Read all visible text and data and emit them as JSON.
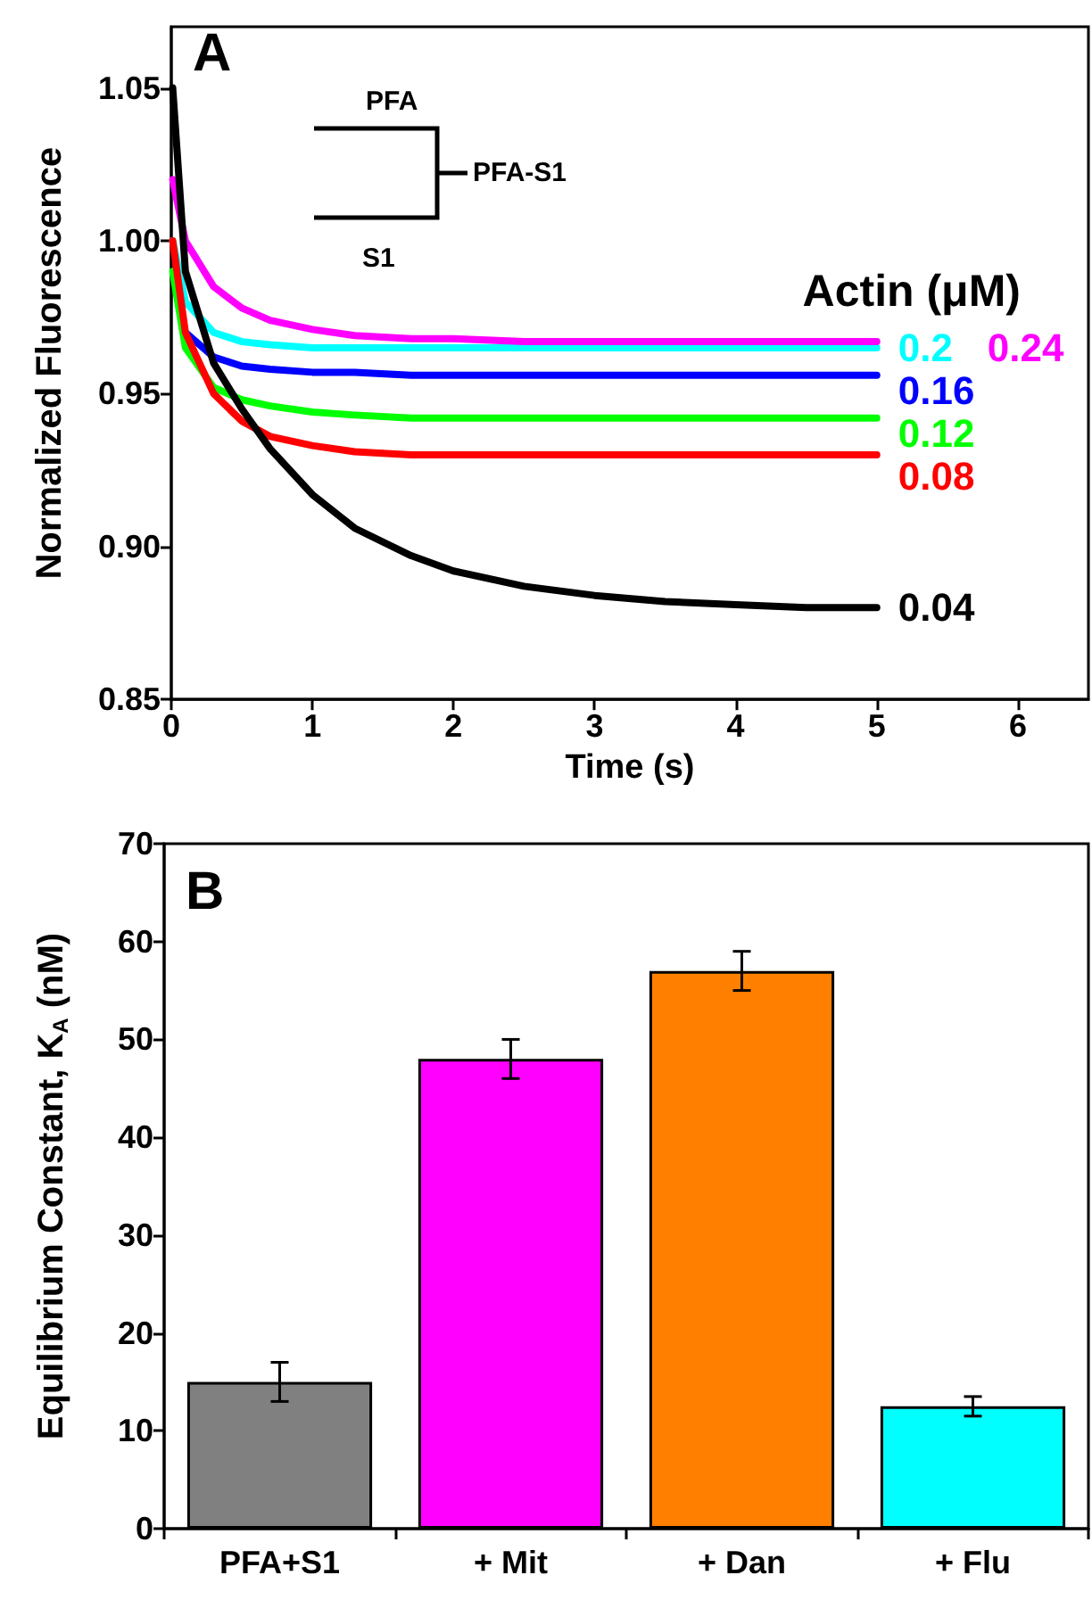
{
  "chart_data": [
    {
      "type": "line",
      "xlabel": "Time (s)",
      "ylabel": "Normalized Fluorescence",
      "legend_title": "Actin (μM)",
      "xlim": [
        0,
        6.5
      ],
      "xticks": [
        0,
        1,
        2,
        3,
        4,
        5,
        6
      ],
      "ylim": [
        0.85,
        1.07
      ],
      "yticks": [
        0.85,
        {
          "value": 0.9,
          "label": "0.90"
        },
        0.95,
        {
          "value": 1.0,
          "label": "1.00"
        },
        1.05
      ],
      "x": [
        0.01,
        0.1,
        0.3,
        0.5,
        0.7,
        1.0,
        1.3,
        1.7,
        2.0,
        2.5,
        3.0,
        3.5,
        4.0,
        4.5,
        5.0
      ],
      "series": [
        {
          "name": "0.2",
          "color": "#00ffff",
          "values": [
            1.0,
            0.98,
            0.97,
            0.967,
            0.966,
            0.965,
            0.965,
            0.965,
            0.965,
            0.965,
            0.965,
            0.965,
            0.965,
            0.965,
            0.965
          ]
        },
        {
          "name": "0.24",
          "color": "#ff00ff",
          "values": [
            1.02,
            1.0,
            0.985,
            0.978,
            0.974,
            0.971,
            0.969,
            0.968,
            0.968,
            0.967,
            0.967,
            0.967,
            0.967,
            0.967,
            0.967
          ]
        },
        {
          "name": "0.16",
          "color": "#0000ff",
          "values": [
            null,
            0.97,
            0.962,
            0.959,
            0.958,
            0.957,
            0.957,
            0.956,
            0.956,
            0.956,
            0.956,
            0.956,
            0.956,
            0.956,
            0.956
          ]
        },
        {
          "name": "0.12",
          "color": "#00ff00",
          "values": [
            0.99,
            0.965,
            0.952,
            0.948,
            0.946,
            0.944,
            0.943,
            0.942,
            0.942,
            0.942,
            0.942,
            0.942,
            0.942,
            0.942,
            0.942
          ]
        },
        {
          "name": "0.08",
          "color": "#ff0000",
          "values": [
            1.0,
            0.97,
            0.95,
            0.941,
            0.936,
            0.933,
            0.931,
            0.93,
            0.93,
            0.93,
            0.93,
            0.93,
            0.93,
            0.93,
            0.93
          ]
        },
        {
          "name": "0.04",
          "color": "#000000",
          "values": [
            1.05,
            0.99,
            0.96,
            0.945,
            0.932,
            0.917,
            0.906,
            0.897,
            0.892,
            0.887,
            0.884,
            0.882,
            0.881,
            0.88,
            0.88
          ]
        }
      ],
      "annotations": [
        "A",
        "PFA",
        "PFA-S1",
        "S1"
      ],
      "grid": false,
      "legend": false,
      "marker": "none",
      "line_style": "solid"
    },
    {
      "type": "bar",
      "ylabel": "Equilibrium Constant, K$_{A}$ (nM)",
      "categories": [
        "PFA+S1",
        "+ Mit",
        "+ Dan",
        "+ Flu"
      ],
      "values": [
        15,
        48,
        57,
        12.5
      ],
      "errors": [
        2,
        2,
        2,
        1
      ],
      "colors": [
        "#808080",
        "#ff00ff",
        "#ff8000",
        "#00ffff"
      ],
      "ylim": [
        0,
        70
      ],
      "yticks": [
        0,
        10,
        20,
        30,
        40,
        50,
        60,
        70
      ],
      "annotations": [
        "B"
      ],
      "grid": false,
      "legend": false
    }
  ]
}
